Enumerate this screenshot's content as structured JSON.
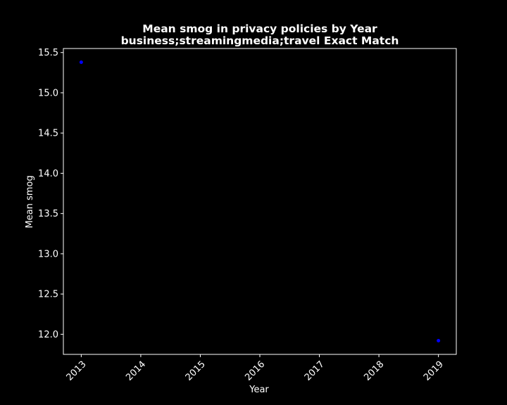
{
  "chart_data": {
    "type": "scatter",
    "title_line1": "Mean smog in privacy policies by Year",
    "title_line2": "business;streamingmedia;travel Exact Match",
    "xlabel": "Year",
    "ylabel": "Mean smog",
    "x_ticks": [
      "2013",
      "2014",
      "2015",
      "2016",
      "2017",
      "2018",
      "2019"
    ],
    "y_ticks": [
      "12.0",
      "12.5",
      "13.0",
      "13.5",
      "14.0",
      "14.5",
      "15.0",
      "15.5"
    ],
    "xlim": [
      2012.7,
      2019.3
    ],
    "ylim": [
      11.75,
      15.55
    ],
    "grid": false,
    "series": [
      {
        "x": [
          2013,
          2019
        ],
        "y": [
          15.38,
          11.92
        ]
      }
    ],
    "colors": {
      "background": "#000000",
      "axes": "#ffffff",
      "text": "#ffffff",
      "marker": "#0000ff"
    }
  }
}
